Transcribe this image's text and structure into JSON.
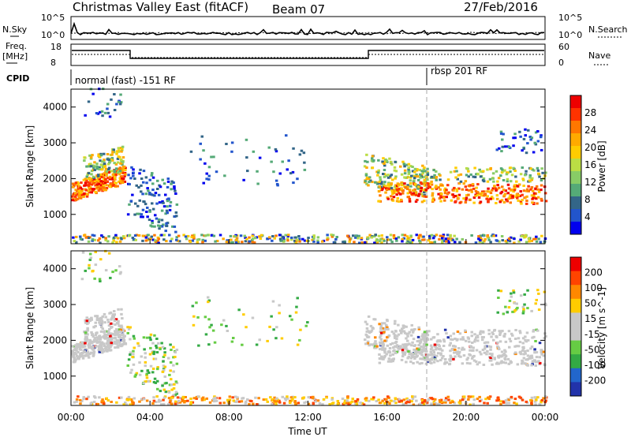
{
  "header": {
    "title": "Christmas Valley East (fitACF)",
    "beam": "Beam 07",
    "date": "27/Feb/2016"
  },
  "panels": {
    "nsky_label": "N.Sky",
    "nsearch_label": "N.Search",
    "nsky_ticks": [
      "10^5",
      "10^0"
    ],
    "nsearch_ticks": [
      "10^5",
      "10^0"
    ],
    "freq_label_1": "Freq.",
    "freq_label_2": "[MHz]",
    "freq_ticks": [
      "18",
      "8"
    ],
    "nave_label": "Nave",
    "nave_ticks": [
      "60",
      "0"
    ],
    "cpid_label": "CPID",
    "cpid_1": "normal (fast) -151 RF",
    "cpid_2": "rbsp 201 RF"
  },
  "chart_data": [
    {
      "type": "heatmap",
      "name": "power",
      "ylabel": "Slant Range [km]",
      "colorbar_label": "Power [dB]",
      "colorbar_ticks": [
        "28",
        "24",
        "20",
        "16",
        "12",
        "8",
        "4"
      ],
      "colors": [
        "#0000ee",
        "#2255cc",
        "#336688",
        "#55aa77",
        "#88cc66",
        "#bbdd44",
        "#ffcc00",
        "#ffaa00",
        "#ff7700",
        "#ff3300",
        "#ee0000"
      ],
      "ylim": [
        180,
        4500
      ],
      "yticks": [
        "4000",
        "3000",
        "2000",
        "1000"
      ],
      "xlim": [
        "00:00",
        "24:00"
      ],
      "marker_time": "18:00"
    },
    {
      "type": "heatmap",
      "name": "velocity",
      "ylabel": "Slant Range [km]",
      "colorbar_label": "Velocity [m s^-1]",
      "colorbar_ticks": [
        "200",
        "100",
        "50",
        "15",
        "-15",
        "-50",
        "-100",
        "-200"
      ],
      "colors": [
        "#2233aa",
        "#2266cc",
        "#33aa44",
        "#66cc44",
        "#c8c8c8",
        "#c8c8c8",
        "#ffcc00",
        "#ff8800",
        "#ff4400",
        "#ee0000"
      ],
      "ylim": [
        180,
        4500
      ],
      "yticks": [
        "4000",
        "3000",
        "2000",
        "1000"
      ],
      "xlim": [
        "00:00",
        "24:00"
      ],
      "xlabel": "Time UT",
      "xticks": [
        "00:00",
        "04:00",
        "08:00",
        "12:00",
        "16:00",
        "20:00",
        "00:00"
      ]
    }
  ]
}
